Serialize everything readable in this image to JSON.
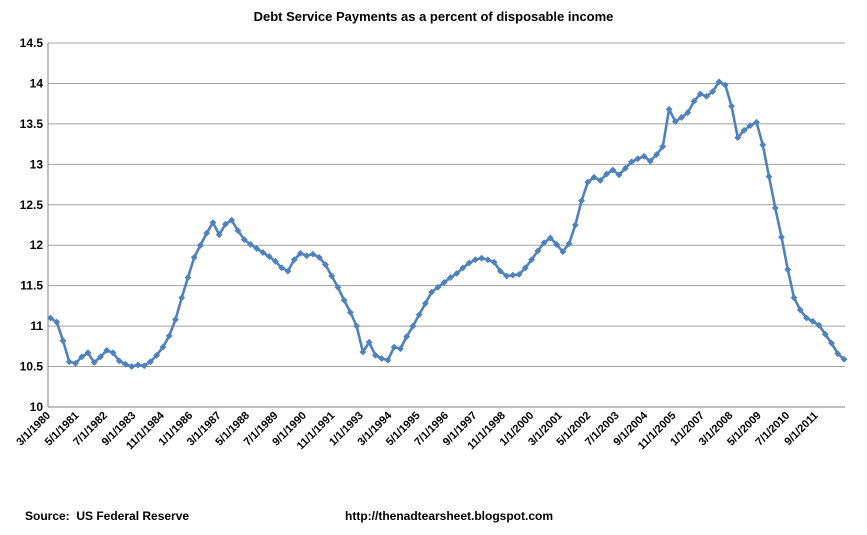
{
  "page": {
    "title": "Debt Service Payments as a percent of disposable income",
    "footer": {
      "source": "Source:  US Federal Reserve",
      "url": "http://thenadtearsheet.blogspot.com"
    }
  },
  "chart_data": {
    "type": "line",
    "title": "Debt Service Payments as a percent of disposable income",
    "xlabel": "",
    "ylabel": "",
    "ylim": [
      10,
      14.5
    ],
    "grid": true,
    "legend": "none",
    "marker": "diamond",
    "colors": {
      "series": "#4F81BD",
      "gridline": "#A0A0A0",
      "axis": "#808080",
      "text": "#000000",
      "background": "#FFFFFF"
    },
    "y_tick_labels": [
      "14.5",
      "14",
      "13.5",
      "13",
      "12.5",
      "12",
      "11.5",
      "11",
      "10.5",
      "10"
    ],
    "x_tick_labels": [
      "3/1/1980",
      "5/1/1981",
      "7/1/1982",
      "9/1/1983",
      "11/1/1984",
      "1/1/1986",
      "3/1/1987",
      "5/1/1988",
      "7/1/1989",
      "9/1/1990",
      "11/1/1991",
      "1/1/1993",
      "3/1/1994",
      "5/1/1995",
      "7/1/1996",
      "9/1/1997",
      "11/1/1998",
      "1/1/2000",
      "3/1/2001",
      "5/1/2002",
      "7/1/2003",
      "9/1/2004",
      "11/1/2005",
      "1/1/2007",
      "3/1/2008",
      "5/1/2009",
      "7/1/2010",
      "9/1/2011"
    ],
    "series": [
      {
        "values": [
          11.1,
          11.05,
          10.82,
          10.56,
          10.54,
          10.62,
          10.67,
          10.55,
          10.62,
          10.7,
          10.67,
          10.57,
          10.53,
          10.5,
          10.52,
          10.51,
          10.56,
          10.64,
          10.74,
          10.88,
          11.08,
          11.35,
          11.6,
          11.85,
          12.0,
          12.15,
          12.28,
          12.13,
          12.26,
          12.31,
          12.18,
          12.07,
          12.01,
          11.96,
          11.91,
          11.86,
          11.8,
          11.72,
          11.68,
          11.82,
          11.9,
          11.87,
          11.89,
          11.85,
          11.76,
          11.62,
          11.48,
          11.32,
          11.17,
          11.0,
          10.68,
          10.8,
          10.64,
          10.6,
          10.58,
          10.74,
          10.72,
          10.87,
          11.0,
          11.14,
          11.28,
          11.42,
          11.48,
          11.54,
          11.6,
          11.65,
          11.72,
          11.78,
          11.82,
          11.84,
          11.82,
          11.79,
          11.68,
          11.62,
          11.63,
          11.64,
          11.72,
          11.82,
          11.93,
          12.03,
          12.09,
          12.01,
          11.92,
          12.02,
          12.25,
          12.55,
          12.78,
          12.84,
          12.8,
          12.88,
          12.93,
          12.87,
          12.95,
          13.03,
          13.07,
          13.1,
          13.04,
          13.12,
          13.22,
          13.68,
          13.53,
          13.58,
          13.64,
          13.78,
          13.87,
          13.84,
          13.9,
          14.02,
          13.98,
          13.72,
          13.33,
          13.42,
          13.48,
          13.52,
          13.24,
          12.85,
          12.46,
          12.1,
          11.7,
          11.35,
          11.2,
          11.1,
          11.06,
          11.01,
          10.9,
          10.79,
          10.66,
          10.59
        ]
      }
    ]
  }
}
